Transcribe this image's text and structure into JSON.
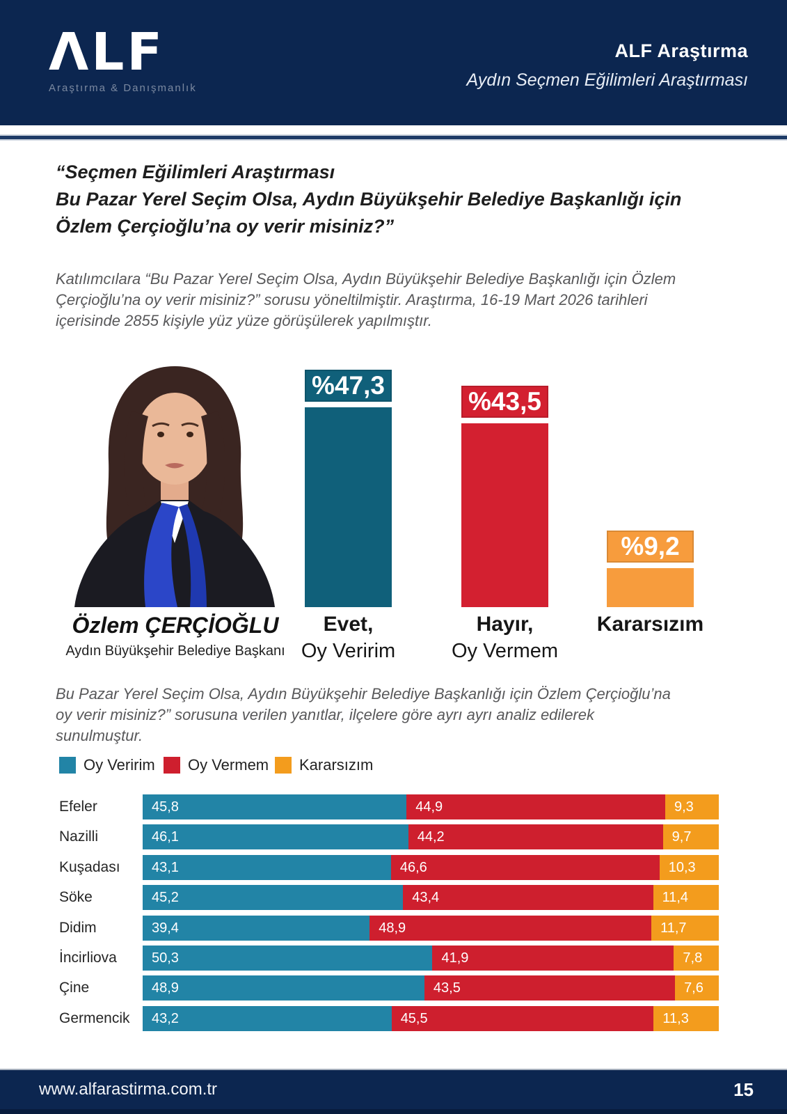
{
  "header": {
    "logo_text": "ΛLF",
    "logo_subtitle": "Araştırma & Danışmanlık",
    "org_name": "ALF Araştırma",
    "report_title": "Aydın Seçmen Eğilimleri Araştırması"
  },
  "question_title": {
    "line1": "“Seçmen Eğilimleri Araştırması",
    "line2": "Bu Pazar Yerel Seçim Olsa, Aydın Büyükşehir Belediye Başkanlığı için",
    "line3": "Özlem Çerçioğlu’na oy verir misiniz?”"
  },
  "methodology_text": "Katılımcılara “Bu Pazar Yerel Seçim Olsa, Aydın Büyükşehir Belediye Başkanlığı için Özlem Çerçioğlu’na oy verir misiniz?” sorusu yöneltilmiştir. Araştırma, 16-19 Mart 2026 tarihleri içerisinde 2855 kişiyle yüz yüze görüşülerek yapılmıştır.",
  "candidate": {
    "name": "Özlem ÇERÇİOĞLU",
    "title": "Aydın Büyükşehir Belediye Başkanı"
  },
  "analysis_text": "Bu Pazar Yerel Seçim Olsa, Aydın Büyükşehir Belediye Başkanlığı için Özlem Çerçioğlu’na oy verir misiniz?” sorusuna verilen yanıtlar, ilçelere göre ayrı ayrı analiz edilerek sunulmuştur.",
  "footer": {
    "website": "www.alfarastirma.com.tr",
    "page_number": "15"
  },
  "colors": {
    "navy": "#0C2650",
    "overview_teal": "#10607A",
    "overview_red": "#D32030",
    "overview_orange": "#F79C3D",
    "stacked_teal": "#2284A6",
    "stacked_red": "#CE1F2E",
    "stacked_orange": "#F39C1D"
  },
  "chart_data": [
    {
      "type": "bar",
      "title": "Özlem Çerçioğlu’na oy verir misiniz? — Aydın geneli",
      "categories": [
        "Evet, Oy Veririm",
        "Hayır, Oy Vermem",
        "Kararsızım"
      ],
      "category_lines": [
        [
          "Evet,",
          "Oy Veririm"
        ],
        [
          "Hayır,",
          "Oy Vermem"
        ],
        [
          "Kararsızım",
          ""
        ]
      ],
      "values": [
        47.3,
        43.5,
        9.2
      ],
      "data_labels": [
        "%47,3",
        "%43,5",
        "%9,2"
      ],
      "bar_colors": [
        "#10607A",
        "#D32030",
        "#F79C3D"
      ],
      "xlabel": "",
      "ylabel": "",
      "ylim": [
        0,
        50
      ],
      "grid": false,
      "legend_position": "none"
    },
    {
      "type": "bar",
      "orientation": "horizontal_stacked",
      "title": "İlçelere göre yanıtlar",
      "categories": [
        "Efeler",
        "Nazilli",
        "Kuşadası",
        "Söke",
        "Didim",
        "İncirliova",
        "Çine",
        "Germencik"
      ],
      "series": [
        {
          "name": "Oy Veririm",
          "color": "#2284A6",
          "values": [
            45.8,
            46.1,
            43.1,
            45.2,
            39.4,
            50.3,
            48.9,
            43.2
          ]
        },
        {
          "name": "Oy Vermem",
          "color": "#CE1F2E",
          "values": [
            44.9,
            44.2,
            46.6,
            43.4,
            48.9,
            41.9,
            43.5,
            45.5
          ]
        },
        {
          "name": "Kararsızım",
          "color": "#F39C1D",
          "values": [
            9.3,
            9.7,
            10.3,
            11.4,
            11.7,
            7.8,
            7.6,
            11.3
          ]
        }
      ],
      "xlim": [
        0,
        100
      ],
      "grid": false,
      "legend_position": "top-left",
      "value_format": "comma_decimal"
    }
  ]
}
